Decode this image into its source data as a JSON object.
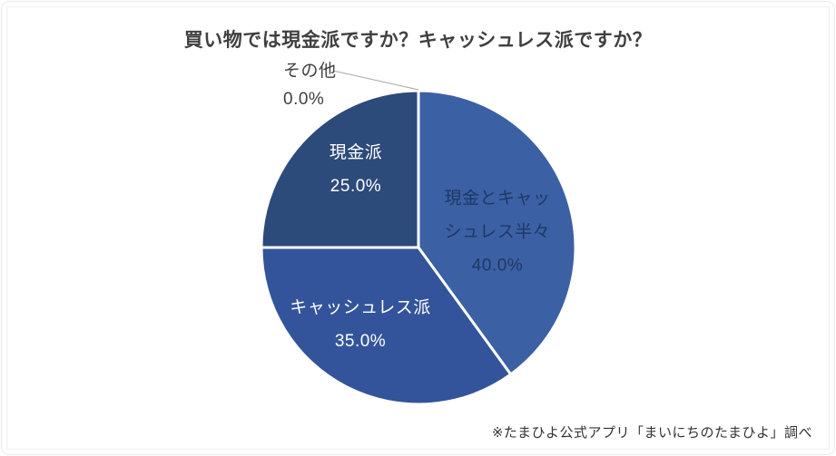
{
  "page": {
    "background": "#FFFFFF"
  },
  "chart_data": {
    "type": "pie",
    "title": "買い物では現金派ですか？キャッシュレス派ですか？",
    "title_color": "#404040",
    "source_note": "※たまひよ公式アプリ「まいにちのたまひよ」調べ",
    "source_note_color": "#333333",
    "units": "%",
    "start_angle_deg": 0,
    "direction": "clockwise",
    "slice_border_color": "#FFFFFF",
    "leader_line_color": "#A6A6A6",
    "slices": [
      {
        "label": "現金とキャッシュレス半々",
        "label_lines": [
          "現金とキャッ",
          "シュレス半々"
        ],
        "value_pct": 40.0,
        "pct_label": "40.0%",
        "color": "#3B60A4",
        "label_color": "#1F3864",
        "label_position": "inside"
      },
      {
        "label": "キャッシュレス派",
        "label_lines": [
          "キャッシュレス派"
        ],
        "value_pct": 35.0,
        "pct_label": "35.0%",
        "color": "#33549B",
        "label_color": "#FFFFFF",
        "label_position": "inside"
      },
      {
        "label": "現金派",
        "label_lines": [
          "現金派"
        ],
        "value_pct": 25.0,
        "pct_label": "25.0%",
        "color": "#2C4A7A",
        "label_color": "#FFFFFF",
        "label_position": "inside"
      },
      {
        "label": "その他",
        "label_lines": [
          "その他"
        ],
        "value_pct": 0.0,
        "pct_label": "0.0%",
        "label_color": "#3F3F3F",
        "label_position": "outside",
        "leader_line": true
      }
    ]
  }
}
